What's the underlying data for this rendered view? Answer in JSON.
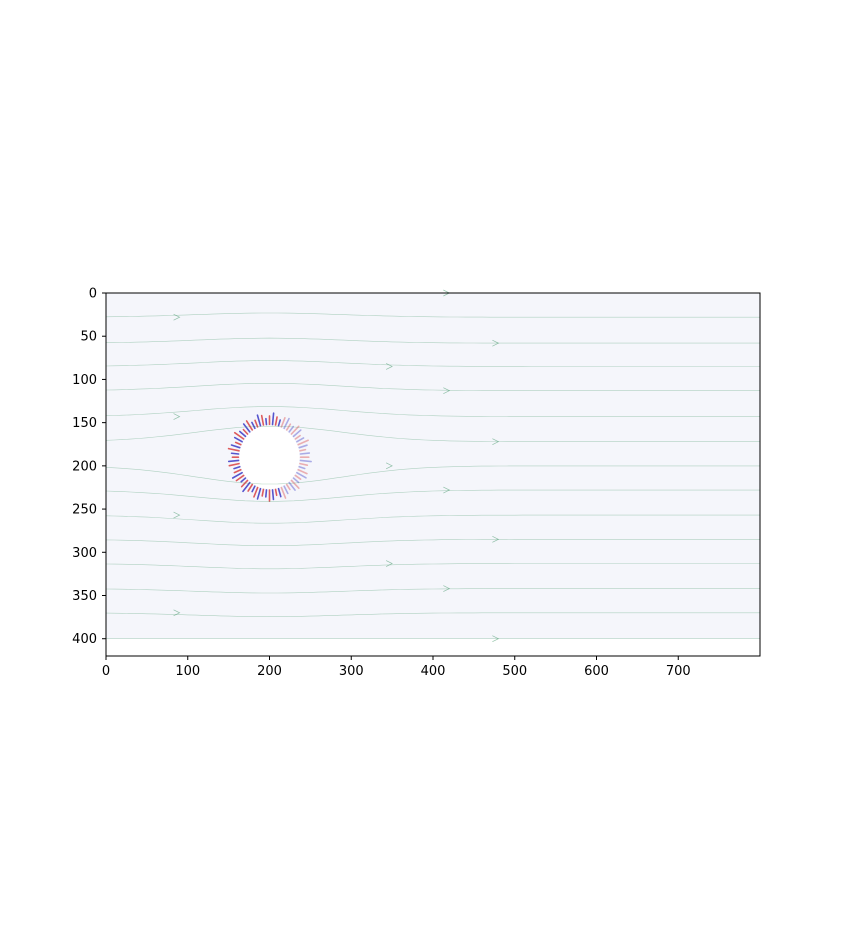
{
  "chart_data": {
    "type": "heatmap",
    "title": "",
    "xlabel": "",
    "ylabel": "",
    "xlim": [
      0,
      800
    ],
    "ylim": [
      420,
      0
    ],
    "y_axis_inverted": true,
    "image_extent": {
      "x": [
        0,
        800
      ],
      "y": [
        0,
        400
      ]
    },
    "colormap": "bwr (blue-white-red)",
    "grid": false,
    "legend": "none",
    "x_ticks": [
      0,
      100,
      200,
      300,
      400,
      500,
      600,
      700
    ],
    "y_ticks": [
      0,
      50,
      100,
      150,
      200,
      250,
      300,
      350,
      400
    ],
    "obstacle": {
      "shape": "circle",
      "center": [
        200,
        190
      ],
      "radius": 40
    },
    "streamline_color": "#2e8b57",
    "streamline_y0": [
      0,
      28,
      58,
      85,
      113,
      143,
      172,
      200,
      228,
      257,
      285,
      313,
      342,
      370,
      400
    ],
    "colors": {
      "positive": "#d62728",
      "negative": "#1f1fbf",
      "background": "#f5f6fb"
    }
  }
}
